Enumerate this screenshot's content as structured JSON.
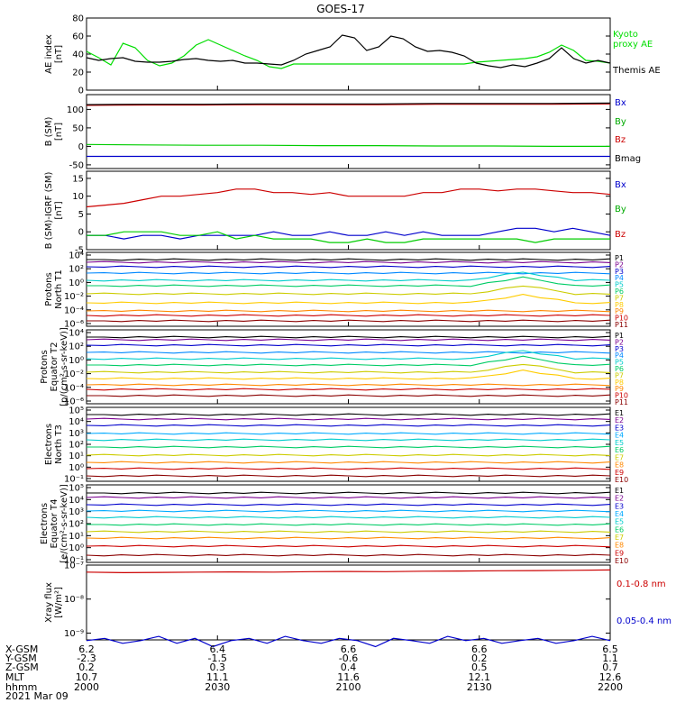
{
  "title": "GOES-17",
  "colors": {
    "black": "#000000",
    "green": "#00dd00",
    "blue": "#0000cc",
    "red": "#cc0000",
    "darkred": "#8b0000",
    "ae_green": "#00e000"
  },
  "chart_data": [
    {
      "type": "line",
      "ylabel": "AE index\n[nT]",
      "ylim": [
        0,
        80
      ],
      "yticks": [
        "0",
        "20",
        "40",
        "60",
        "80"
      ],
      "legend": [
        "Kyoto\nproxy AE",
        "Themis AE"
      ],
      "legend_colors": [
        "#00dd00",
        "#000000"
      ],
      "series": [
        {
          "name": "Kyoto proxy AE",
          "color": "#00dd00",
          "values": [
            43,
            36,
            28,
            52,
            47,
            33,
            27,
            30,
            38,
            50,
            56,
            50,
            44,
            38,
            33,
            26,
            24,
            29,
            29,
            29,
            29,
            29,
            29,
            29,
            29,
            29,
            29,
            29,
            29,
            29,
            29,
            29,
            31,
            32,
            33,
            34,
            35,
            37,
            42,
            50,
            44,
            33,
            32,
            30
          ]
        },
        {
          "name": "Themis AE",
          "color": "#000000",
          "values": [
            36,
            33,
            35,
            36,
            32,
            31,
            31,
            32,
            34,
            35,
            33,
            32,
            33,
            30,
            30,
            29,
            28,
            33,
            40,
            44,
            48,
            61,
            58,
            44,
            48,
            60,
            57,
            48,
            43,
            44,
            42,
            38,
            30,
            27,
            25,
            28,
            26,
            30,
            35,
            47,
            35,
            30,
            33,
            30
          ]
        }
      ]
    },
    {
      "type": "line",
      "ylabel": "B (SM)\n[nT]",
      "ylim": [
        -60,
        140
      ],
      "yticks": [
        "-50",
        "0",
        "50",
        "100"
      ],
      "legend": [
        "Bx",
        "By",
        "Bz",
        "Bmag"
      ],
      "legend_colors": [
        "#0000cc",
        "#00aa00",
        "#cc0000",
        "#000000"
      ],
      "series": [
        {
          "name": "Bx",
          "color": "#0000cc",
          "values": [
            -27,
            -27,
            -27,
            -27,
            -27,
            -27,
            -27,
            -27,
            -27,
            -27
          ]
        },
        {
          "name": "By",
          "color": "#00cc00",
          "values": [
            5,
            4,
            3,
            3,
            2,
            2,
            1,
            1,
            0,
            0
          ]
        },
        {
          "name": "Bz",
          "color": "#cc0000",
          "values": [
            111,
            112,
            112,
            113,
            113,
            113,
            114,
            114,
            114,
            115
          ]
        },
        {
          "name": "Bmag",
          "color": "#000000",
          "values": [
            113,
            114,
            114,
            115,
            115,
            115,
            116,
            116,
            116,
            117
          ]
        }
      ]
    },
    {
      "type": "line",
      "ylabel": "B (SM)-IGRF (SM)\n[nT]",
      "ylim": [
        -5,
        17
      ],
      "yticks": [
        "-5",
        "0",
        "5",
        "10",
        "15"
      ],
      "legend": [
        "Bx",
        "By",
        "Bz"
      ],
      "legend_colors": [
        "#0000cc",
        "#00aa00",
        "#cc0000"
      ],
      "series": [
        {
          "name": "Bx",
          "color": "#0000cc",
          "values": [
            -1,
            -1,
            -2,
            -1,
            -1,
            -2,
            -1,
            -1,
            -1,
            -1,
            0,
            -1,
            -1,
            0,
            -1,
            -1,
            0,
            -1,
            0,
            -1,
            -1,
            -1,
            0,
            1,
            1,
            0,
            1,
            0,
            -1
          ]
        },
        {
          "name": "By",
          "color": "#00cc00",
          "values": [
            -1,
            -1,
            0,
            0,
            0,
            -1,
            -1,
            0,
            -2,
            -1,
            -2,
            -2,
            -2,
            -3,
            -3,
            -2,
            -3,
            -3,
            -2,
            -2,
            -2,
            -2,
            -2,
            -2,
            -3,
            -2,
            -2,
            -2,
            -2
          ]
        },
        {
          "name": "Bz",
          "color": "#cc0000",
          "values": [
            7,
            7.5,
            8,
            9,
            10,
            10,
            10.5,
            11,
            12,
            12,
            11,
            11,
            10.5,
            11,
            10,
            10,
            10,
            10,
            11,
            11,
            12,
            12,
            11.5,
            12,
            12,
            11.5,
            11,
            11,
            10.5
          ]
        }
      ]
    },
    {
      "type": "line",
      "ylabel": "Protons\nNorth T1",
      "yscale": "log",
      "yticks": [
        "10⁴",
        "10²",
        "10⁰",
        "10⁻²",
        "10⁻⁴",
        "10⁻⁶"
      ],
      "legend": [
        "P1",
        "P2",
        "P3",
        "P4",
        "P5",
        "P6",
        "P7",
        "P8",
        "P9",
        "P10",
        "P11"
      ],
      "legend_colors": [
        "#000000",
        "#7a0090",
        "#0000cc",
        "#0088ff",
        "#00cccc",
        "#00cc66",
        "#cccc00",
        "#ffcc00",
        "#ff8800",
        "#cc0000",
        "#8b0000"
      ]
    },
    {
      "type": "line",
      "ylabel": "Protons\nEquator T2\n[p/(cm²-s-sr-keV)]",
      "yscale": "log",
      "yticks": [
        "10⁴",
        "10²",
        "10⁰",
        "10⁻²",
        "10⁻⁴",
        "10⁻⁶"
      ],
      "legend": [
        "P1",
        "P2",
        "P3",
        "P4",
        "P5",
        "P6",
        "P7",
        "P8",
        "P9",
        "P10",
        "P11"
      ],
      "legend_colors": [
        "#000000",
        "#7a0090",
        "#0000cc",
        "#0088ff",
        "#00cccc",
        "#00cc66",
        "#cccc00",
        "#ffcc00",
        "#ff8800",
        "#cc0000",
        "#8b0000"
      ]
    },
    {
      "type": "line",
      "ylabel": "Electrons\nNorth T3",
      "yscale": "log",
      "yticks": [
        "10⁵",
        "10⁴",
        "10³",
        "10²",
        "10¹",
        "10⁰",
        "10⁻¹"
      ],
      "legend": [
        "E1",
        "E2",
        "E3",
        "E4",
        "E5",
        "E6",
        "E7",
        "E8",
        "E9",
        "E10"
      ],
      "legend_colors": [
        "#000000",
        "#7a0090",
        "#0000cc",
        "#00aaff",
        "#00cccc",
        "#00cc66",
        "#cccc00",
        "#ff8800",
        "#cc0000",
        "#8b0000"
      ]
    },
    {
      "type": "line",
      "ylabel": "Electrons\nEquator T4\n[e/(cm²-s-sr-keV)]",
      "yscale": "log",
      "yticks": [
        "10⁵",
        "10⁴",
        "10³",
        "10²",
        "10¹",
        "10⁰",
        "10⁻¹"
      ],
      "legend": [
        "E1",
        "E2",
        "E3",
        "E4",
        "E5",
        "E6",
        "E7",
        "E8",
        "E9",
        "E10"
      ],
      "legend_colors": [
        "#000000",
        "#7a0090",
        "#0000cc",
        "#00aaff",
        "#00cccc",
        "#00cc66",
        "#cccc00",
        "#ff8800",
        "#cc0000",
        "#8b0000"
      ]
    },
    {
      "type": "line",
      "ylabel": "Xray flux\n[W/m²]",
      "yscale": "log",
      "yticks": [
        "10⁻⁷",
        "10⁻⁸",
        "10⁻⁹"
      ],
      "legend": [
        "0.1-0.8 nm",
        "0.05-0.4 nm"
      ],
      "legend_colors": [
        "#cc0000",
        "#0000cc"
      ],
      "series": [
        {
          "name": "0.1-0.8 nm",
          "color": "#cc0000",
          "values": [
            6.2e-08,
            6e-08,
            6.1e-08,
            6.2e-08,
            6.3e-08,
            6.2e-08,
            6.4e-08,
            6.5e-08,
            6.4e-08,
            6.6e-08,
            6.7e-08,
            6.8e-08,
            6.9e-08,
            7e-08,
            7.2e-08
          ]
        },
        {
          "name": "0.05-0.4 nm",
          "color": "#0000cc",
          "values": [
            6e-10,
            7e-10,
            5e-10,
            6e-10,
            8e-10,
            5e-10,
            7e-10,
            4e-10,
            6e-10,
            7e-10,
            5e-10,
            8e-10,
            6e-10,
            5e-10,
            7e-10,
            6e-10,
            4e-10,
            7e-10,
            6e-10,
            5e-10,
            8e-10,
            6e-10,
            7e-10,
            5e-10,
            6e-10,
            7e-10,
            5e-10,
            6e-10,
            8e-10,
            6e-10
          ]
        }
      ]
    }
  ],
  "bottom_axis": {
    "row_labels": [
      "X-GSM",
      "Y-GSM",
      "Z-GSM",
      "MLT",
      "hhmm",
      "2021 Mar 09"
    ],
    "columns": [
      {
        "x": "6.2",
        "y": "-2.3",
        "z": "0.2",
        "mlt": "10.7",
        "hhmm": "2000"
      },
      {
        "x": "6.4",
        "y": "-1.5",
        "z": "0.3",
        "mlt": "11.1",
        "hhmm": "2030"
      },
      {
        "x": "6.6",
        "y": "-0.6",
        "z": "0.4",
        "mlt": "11.6",
        "hhmm": "2100"
      },
      {
        "x": "6.6",
        "y": "0.2",
        "z": "0.5",
        "mlt": "12.1",
        "hhmm": "2130"
      },
      {
        "x": "6.5",
        "y": "1.1",
        "z": "0.7",
        "mlt": "12.6",
        "hhmm": "2200"
      }
    ]
  }
}
